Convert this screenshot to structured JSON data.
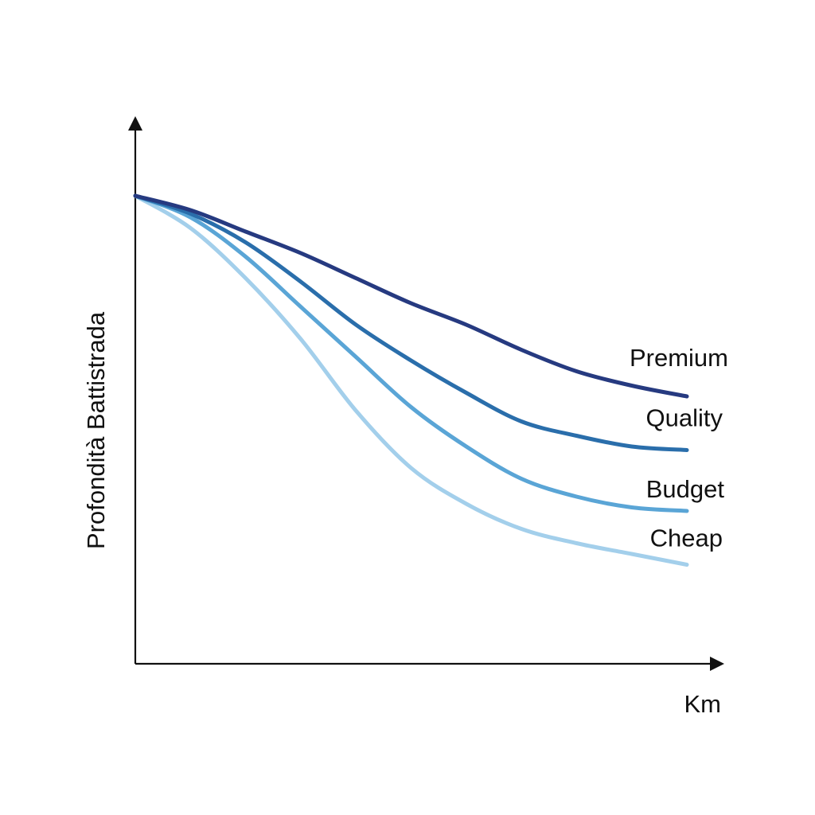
{
  "chart_data": {
    "type": "line",
    "xlabel": "Km",
    "ylabel": "Profondità Battistrada",
    "xlim": [
      0,
      1
    ],
    "ylim": [
      0,
      1
    ],
    "grid": false,
    "legend": "inline-right",
    "series": [
      {
        "name": "Premium",
        "color": "#263a80",
        "x": [
          0,
          0.1,
          0.2,
          0.3,
          0.4,
          0.5,
          0.6,
          0.7,
          0.8,
          0.9,
          1.0
        ],
        "y": [
          1.0,
          0.96,
          0.9,
          0.84,
          0.77,
          0.7,
          0.64,
          0.57,
          0.51,
          0.47,
          0.44
        ]
      },
      {
        "name": "Quality",
        "color": "#2a6eab",
        "x": [
          0,
          0.1,
          0.2,
          0.3,
          0.4,
          0.5,
          0.6,
          0.7,
          0.8,
          0.9,
          1.0
        ],
        "y": [
          1.0,
          0.95,
          0.87,
          0.76,
          0.64,
          0.54,
          0.45,
          0.37,
          0.33,
          0.3,
          0.29
        ]
      },
      {
        "name": "Budget",
        "color": "#5aa5d6",
        "x": [
          0,
          0.1,
          0.2,
          0.3,
          0.4,
          0.5,
          0.6,
          0.7,
          0.8,
          0.9,
          1.0
        ],
        "y": [
          1.0,
          0.94,
          0.83,
          0.69,
          0.55,
          0.41,
          0.3,
          0.21,
          0.16,
          0.13,
          0.12
        ]
      },
      {
        "name": "Cheap",
        "color": "#a3cfeb",
        "x": [
          0,
          0.1,
          0.2,
          0.3,
          0.4,
          0.5,
          0.6,
          0.7,
          0.8,
          0.9,
          1.0
        ],
        "y": [
          1.0,
          0.91,
          0.77,
          0.6,
          0.4,
          0.24,
          0.14,
          0.07,
          0.03,
          0.0,
          -0.03
        ]
      }
    ]
  }
}
